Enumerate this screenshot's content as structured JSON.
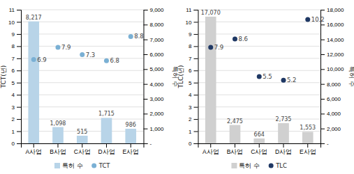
{
  "chart_data": [
    {
      "type": "bar",
      "categories": [
        "A사업",
        "B사업",
        "C사업",
        "D사업",
        "E사업"
      ],
      "y_label": "TCT(년)",
      "y2_label": "특허 수",
      "ylim": [
        0,
        11
      ],
      "yticks": [
        0,
        1,
        2,
        3,
        4,
        5,
        6,
        7,
        8,
        9,
        10,
        11
      ],
      "y2lim": [
        0,
        9000
      ],
      "y2ticks": [
        {
          "value": 0,
          "label": "-"
        },
        {
          "value": 1000,
          "label": "1,000"
        },
        {
          "value": 2000,
          "label": "2,000"
        },
        {
          "value": 3000,
          "label": "3,000"
        },
        {
          "value": 4000,
          "label": "4,000"
        },
        {
          "value": 5000,
          "label": "5,000"
        },
        {
          "value": 6000,
          "label": "6,000"
        },
        {
          "value": 7000,
          "label": "7,000"
        },
        {
          "value": 8000,
          "label": "8,000"
        },
        {
          "value": 9000,
          "label": "9,000"
        }
      ],
      "grid": true,
      "legend": "bottom",
      "data_labels": true,
      "series": [
        {
          "name": "특허 수",
          "type": "bar",
          "axis": "y2",
          "color": "#b8d4e8",
          "values": [
            8217,
            1098,
            515,
            1715,
            986
          ],
          "value_labels": [
            "8,217",
            "1,098",
            "515",
            "1,715",
            "986"
          ]
        },
        {
          "name": "TCT",
          "type": "scatter",
          "axis": "y",
          "color": "#7ab0d4",
          "marker": "circle",
          "values": [
            6.9,
            7.9,
            7.3,
            6.8,
            8.8
          ]
        }
      ]
    },
    {
      "type": "bar",
      "categories": [
        "A사업",
        "B사업",
        "C사업",
        "D사업",
        "E사업"
      ],
      "y_label": "TLC(년)",
      "y2_label": "특허 수",
      "ylim": [
        0,
        11
      ],
      "yticks": [
        0,
        1,
        2,
        3,
        4,
        5,
        6,
        7,
        8,
        9,
        10,
        11
      ],
      "y2lim": [
        0,
        18000
      ],
      "y2ticks": [
        {
          "value": 0,
          "label": "-"
        },
        {
          "value": 2000,
          "label": "2,000"
        },
        {
          "value": 4000,
          "label": "4,000"
        },
        {
          "value": 6000,
          "label": "6,000"
        },
        {
          "value": 8000,
          "label": "8,000"
        },
        {
          "value": 10000,
          "label": "10,000"
        },
        {
          "value": 12000,
          "label": "12,000"
        },
        {
          "value": 14000,
          "label": "14,000"
        },
        {
          "value": 16000,
          "label": "16,000"
        },
        {
          "value": 18000,
          "label": "18,000"
        }
      ],
      "grid": true,
      "legend": "bottom",
      "data_labels": true,
      "series": [
        {
          "name": "특허 수",
          "type": "bar",
          "axis": "y2",
          "color": "#d0d0d0",
          "values": [
            17070,
            2475,
            664,
            2735,
            1553
          ],
          "value_labels": [
            "17,070",
            "2,475",
            "664",
            "2,735",
            "1,553"
          ]
        },
        {
          "name": "TLC",
          "type": "scatter",
          "axis": "y",
          "color": "#1f3864",
          "marker": "circle",
          "values": [
            7.9,
            8.6,
            5.5,
            5.2,
            10.2
          ]
        }
      ]
    }
  ]
}
